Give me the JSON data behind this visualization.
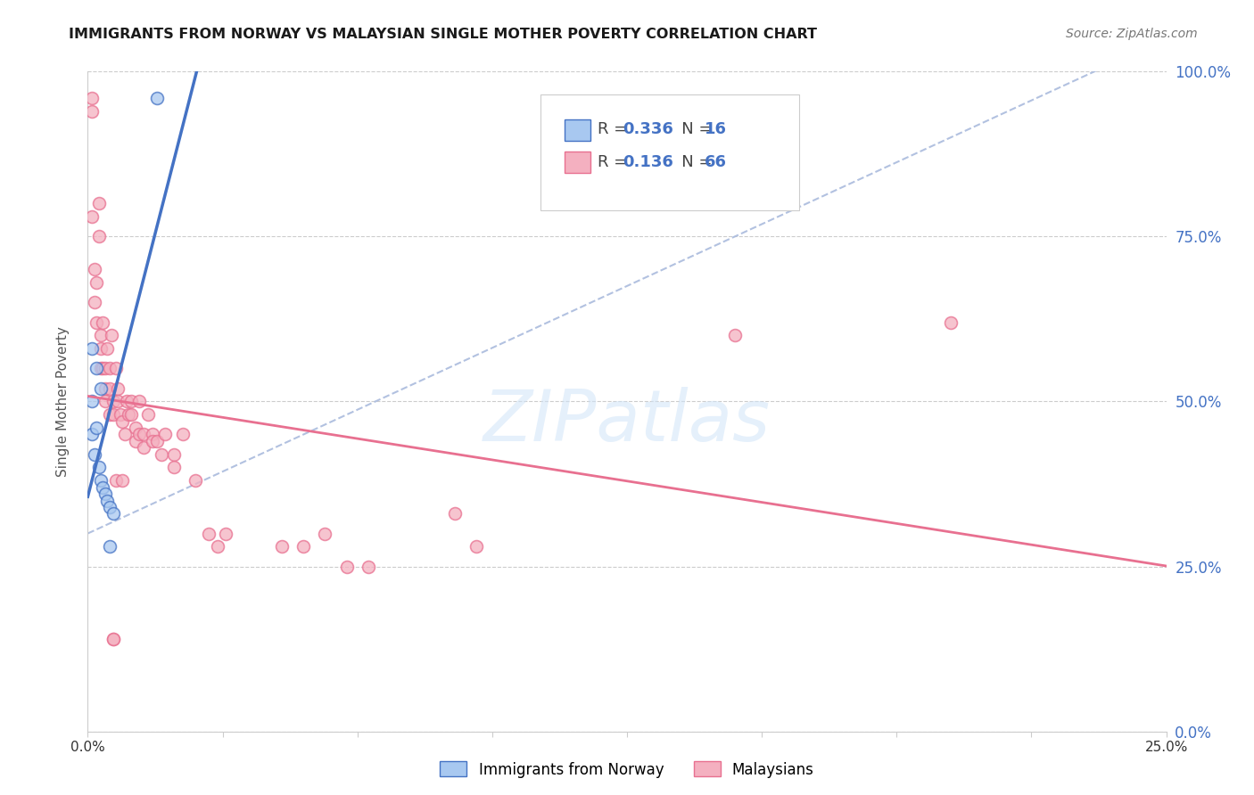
{
  "title": "IMMIGRANTS FROM NORWAY VS MALAYSIAN SINGLE MOTHER POVERTY CORRELATION CHART",
  "source": "Source: ZipAtlas.com",
  "ylabel": "Single Mother Poverty",
  "legend_label_blue": "Immigrants from Norway",
  "legend_label_pink": "Malaysians",
  "xlim": [
    0.0,
    25.0
  ],
  "ylim": [
    0.0,
    100.0
  ],
  "grid_color": "#cccccc",
  "background_color": "#ffffff",
  "blue_fill": "#a8c8f0",
  "blue_edge": "#4472c4",
  "pink_fill": "#f4b0c0",
  "pink_edge": "#e87090",
  "norway_x": [
    1.6,
    0.1,
    0.1,
    0.1,
    0.15,
    0.2,
    0.2,
    0.25,
    0.3,
    0.3,
    0.35,
    0.4,
    0.45,
    0.5,
    0.5,
    0.6
  ],
  "norway_y": [
    96,
    58,
    50,
    45,
    42,
    55,
    46,
    40,
    38,
    52,
    37,
    36,
    35,
    34,
    28,
    33
  ],
  "malaysian_x": [
    0.1,
    0.1,
    0.1,
    0.15,
    0.15,
    0.2,
    0.2,
    0.25,
    0.25,
    0.3,
    0.3,
    0.3,
    0.35,
    0.35,
    0.4,
    0.4,
    0.4,
    0.45,
    0.5,
    0.5,
    0.5,
    0.55,
    0.6,
    0.6,
    0.65,
    0.7,
    0.7,
    0.75,
    0.8,
    0.85,
    0.9,
    0.95,
    1.0,
    1.0,
    1.1,
    1.1,
    1.2,
    1.2,
    1.3,
    1.3,
    1.4,
    1.5,
    1.5,
    1.6,
    1.7,
    1.8,
    2.0,
    2.0,
    2.2,
    2.5,
    2.8,
    3.0,
    3.2,
    4.5,
    5.0,
    5.5,
    6.0,
    6.5,
    8.5,
    9.0,
    15.0,
    20.0,
    0.6,
    0.6,
    0.65,
    0.8
  ],
  "malaysian_y": [
    96,
    78,
    94,
    70,
    65,
    68,
    62,
    80,
    75,
    60,
    58,
    55,
    62,
    55,
    55,
    52,
    50,
    58,
    55,
    52,
    48,
    60,
    50,
    48,
    55,
    52,
    50,
    48,
    47,
    45,
    50,
    48,
    50,
    48,
    46,
    44,
    50,
    45,
    45,
    43,
    48,
    45,
    44,
    44,
    42,
    45,
    42,
    40,
    45,
    38,
    30,
    28,
    30,
    28,
    28,
    30,
    25,
    25,
    33,
    28,
    60,
    62,
    14,
    14,
    38,
    38
  ],
  "watermark": "ZIPatlas",
  "marker_size": 100,
  "legend_r_blue": "0.336",
  "legend_n_blue": "16",
  "legend_r_pink": "0.136",
  "legend_n_pink": "66"
}
